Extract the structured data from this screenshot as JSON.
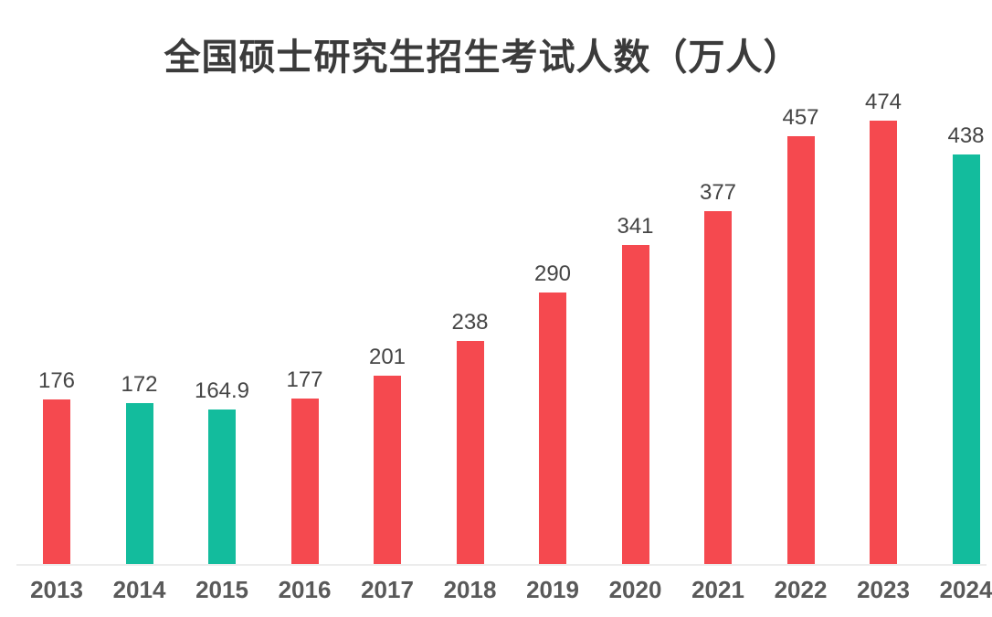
{
  "title": "全国硕士研究生招生考试人数（万人）",
  "colors": {
    "red_bar": "#f5494f",
    "green_bar": "#13bc9d",
    "title_text": "#3b3b3b",
    "value_label_text": "#454545",
    "year_label_text": "#595959",
    "axis_line": "#ececec",
    "background": "#ffffff"
  },
  "chart_data": {
    "type": "bar",
    "title": "全国硕士研究生招生考试人数（万人）",
    "categories": [
      "2013",
      "2014",
      "2015",
      "2016",
      "2017",
      "2018",
      "2019",
      "2020",
      "2021",
      "2022",
      "2023",
      "2024"
    ],
    "values": [
      176,
      172,
      164.9,
      177,
      201,
      238,
      290,
      341,
      377,
      457,
      474,
      438
    ],
    "value_labels": [
      "176",
      "172",
      "164.9",
      "177",
      "201",
      "238",
      "290",
      "341",
      "377",
      "457",
      "474",
      "438"
    ],
    "bar_colors": [
      "#f5494f",
      "#13bc9d",
      "#13bc9d",
      "#f5494f",
      "#f5494f",
      "#f5494f",
      "#f5494f",
      "#f5494f",
      "#f5494f",
      "#f5494f",
      "#f5494f",
      "#13bc9d"
    ],
    "xlabel": "",
    "ylabel": "",
    "ylim": [
      0,
      474
    ],
    "grid": false,
    "legend": false,
    "value_labels_position": "above-bars",
    "baseline_axis": "x"
  }
}
